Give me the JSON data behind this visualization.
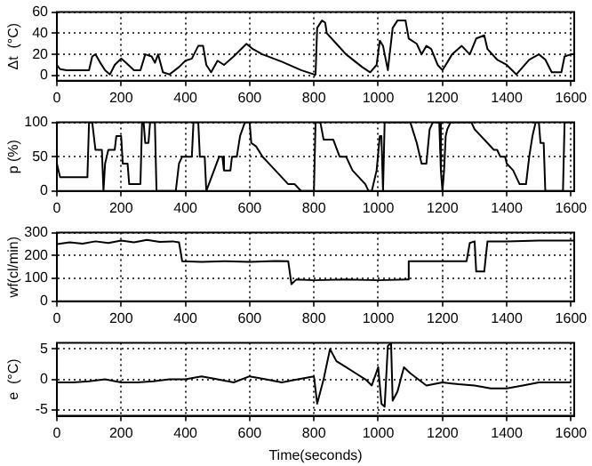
{
  "chart_data": [
    {
      "type": "line",
      "ylabel": "Δt  (°C)",
      "color": "#000000",
      "grid": true,
      "xlim": [
        0,
        1610
      ],
      "xticks": [
        0,
        200,
        400,
        600,
        800,
        1000,
        1200,
        1400,
        1600
      ],
      "ylim": [
        -5,
        60
      ],
      "yticks": [
        0,
        20,
        40,
        60
      ],
      "x": [
        0,
        10,
        30,
        100,
        110,
        120,
        135,
        150,
        165,
        180,
        200,
        215,
        240,
        260,
        275,
        295,
        305,
        315,
        330,
        350,
        380,
        400,
        420,
        440,
        455,
        465,
        480,
        500,
        520,
        550,
        590,
        610,
        640,
        700,
        760,
        800,
        805,
        810,
        825,
        835,
        840,
        870,
        900,
        950,
        975,
        995,
        1005,
        1015,
        1030,
        1045,
        1060,
        1085,
        1095,
        1120,
        1135,
        1150,
        1165,
        1185,
        1200,
        1230,
        1260,
        1285,
        1305,
        1330,
        1340,
        1370,
        1400,
        1430,
        1470,
        1500,
        1520,
        1540,
        1570,
        1580,
        1600,
        1610
      ],
      "values": [
        10,
        6,
        5,
        5,
        18,
        20,
        12,
        5,
        1,
        10,
        16,
        12,
        5,
        5,
        20,
        18,
        12,
        20,
        3,
        1,
        8,
        14,
        16,
        28,
        28,
        10,
        3,
        14,
        10,
        18,
        30,
        25,
        20,
        13,
        5,
        1,
        1,
        45,
        52,
        50,
        40,
        30,
        20,
        8,
        3,
        10,
        33,
        28,
        5,
        45,
        52,
        52,
        35,
        30,
        20,
        28,
        25,
        10,
        5,
        20,
        28,
        20,
        35,
        38,
        25,
        15,
        10,
        1,
        15,
        20,
        15,
        3,
        3,
        18,
        20,
        20
      ]
    },
    {
      "type": "line",
      "ylabel": "p (%)",
      "color": "#000000",
      "grid": true,
      "xlim": [
        0,
        1610
      ],
      "xticks": [
        0,
        200,
        400,
        600,
        800,
        1000,
        1200,
        1400,
        1600
      ],
      "ylim": [
        0,
        100
      ],
      "yticks": [
        0,
        50,
        100
      ],
      "x": [
        0,
        10,
        95,
        100,
        110,
        120,
        140,
        145,
        150,
        160,
        180,
        185,
        200,
        205,
        220,
        225,
        260,
        265,
        270,
        275,
        285,
        290,
        305,
        310,
        370,
        380,
        390,
        420,
        425,
        440,
        445,
        460,
        465,
        505,
        515,
        520,
        540,
        545,
        560,
        570,
        585,
        600,
        605,
        620,
        640,
        660,
        680,
        700,
        720,
        740,
        760,
        800,
        805,
        820,
        830,
        860,
        880,
        900,
        920,
        960,
        970,
        980,
        995,
        1005,
        1010,
        1015,
        1020,
        1100,
        1120,
        1135,
        1150,
        1160,
        1170,
        1190,
        1195,
        1200,
        1205,
        1210,
        1215,
        1225,
        1290,
        1300,
        1340,
        1360,
        1370,
        1380,
        1395,
        1400,
        1420,
        1440,
        1460,
        1470,
        1480,
        1490,
        1500,
        1505,
        1515,
        1520,
        1575,
        1580,
        1610
      ],
      "values": [
        40,
        20,
        20,
        100,
        100,
        60,
        60,
        0,
        40,
        60,
        60,
        80,
        80,
        40,
        40,
        10,
        10,
        100,
        100,
        70,
        70,
        100,
        100,
        0,
        0,
        40,
        50,
        50,
        100,
        100,
        50,
        50,
        0,
        50,
        50,
        30,
        30,
        50,
        50,
        80,
        100,
        100,
        70,
        65,
        50,
        40,
        30,
        20,
        10,
        10,
        0,
        0,
        100,
        100,
        75,
        75,
        50,
        50,
        30,
        10,
        0,
        0,
        30,
        80,
        80,
        0,
        100,
        100,
        70,
        40,
        40,
        90,
        100,
        100,
        30,
        0,
        30,
        80,
        90,
        100,
        100,
        90,
        70,
        60,
        60,
        50,
        50,
        40,
        30,
        10,
        10,
        50,
        80,
        100,
        100,
        70,
        70,
        0,
        0,
        100,
        100
      ]
    },
    {
      "type": "line",
      "ylabel": "wf(cl/min)",
      "color": "#000000",
      "grid": true,
      "xlim": [
        0,
        1610
      ],
      "xticks": [
        0,
        200,
        400,
        600,
        800,
        1000,
        1200,
        1400,
        1600
      ],
      "ylim": [
        0,
        300
      ],
      "yticks": [
        0,
        100,
        200,
        300
      ],
      "x": [
        0,
        40,
        80,
        120,
        160,
        200,
        240,
        280,
        320,
        360,
        380,
        390,
        450,
        520,
        600,
        680,
        720,
        730,
        745,
        800,
        900,
        1000,
        1090,
        1095,
        1200,
        1275,
        1285,
        1300,
        1305,
        1330,
        1340,
        1400,
        1500,
        1610
      ],
      "values": [
        250,
        258,
        252,
        262,
        255,
        265,
        258,
        268,
        260,
        262,
        258,
        175,
        172,
        175,
        172,
        176,
        175,
        75,
        95,
        92,
        95,
        92,
        95,
        175,
        175,
        175,
        255,
        262,
        130,
        130,
        262,
        262,
        265,
        265
      ]
    },
    {
      "type": "line",
      "ylabel": "e  (°C)",
      "xlabel": "Time(seconds)",
      "color": "#000000",
      "grid": true,
      "xlim": [
        0,
        1610
      ],
      "xticks": [
        0,
        200,
        400,
        600,
        800,
        1000,
        1200,
        1400,
        1600
      ],
      "ylim": [
        -6,
        6
      ],
      "yticks": [
        -5,
        0,
        5
      ],
      "x": [
        0,
        50,
        100,
        150,
        200,
        250,
        300,
        350,
        400,
        450,
        500,
        550,
        600,
        650,
        700,
        750,
        800,
        810,
        830,
        850,
        870,
        900,
        930,
        960,
        980,
        1000,
        1010,
        1020,
        1030,
        1040,
        1045,
        1060,
        1080,
        1100,
        1150,
        1200,
        1250,
        1300,
        1350,
        1400,
        1450,
        1500,
        1550,
        1600
      ],
      "values": [
        -0.5,
        -0.5,
        -0.3,
        0,
        -0.5,
        -0.5,
        -0.3,
        0,
        0,
        0.5,
        0,
        -0.5,
        0.5,
        0,
        -0.5,
        0,
        0.5,
        -4,
        0,
        5,
        3,
        2,
        1,
        0,
        -1,
        2,
        -4,
        -4.5,
        5.5,
        6,
        -3.5,
        -2,
        2,
        1,
        -1,
        -0.5,
        -0.8,
        -1,
        -1.5,
        -1.5,
        -1,
        -0.5,
        -0.5,
        -0.5
      ]
    }
  ]
}
